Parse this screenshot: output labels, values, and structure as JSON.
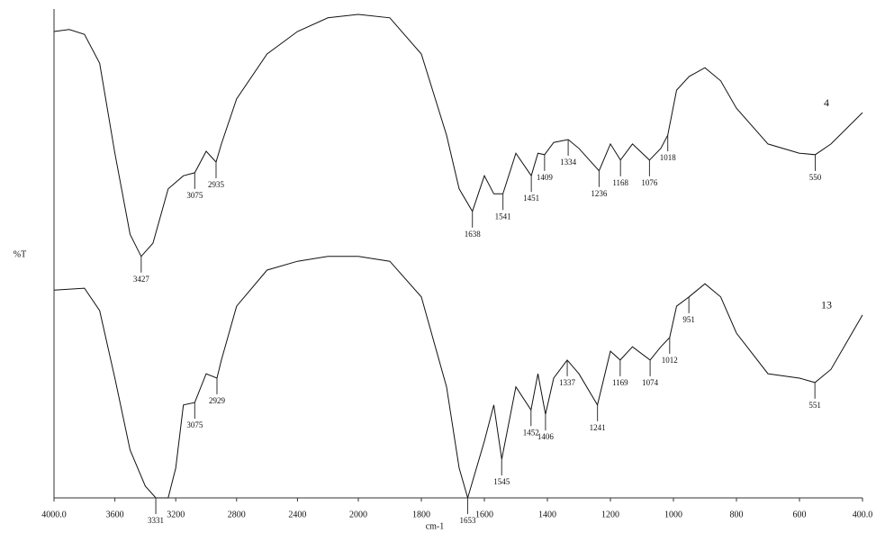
{
  "chart_data": {
    "type": "line",
    "x_label": "cm-1",
    "y_label": "%T",
    "xlim": [
      4000,
      400
    ],
    "x_scale_change": 2000,
    "ylim": [
      0,
      100
    ],
    "xticks": [
      {
        "value": 4000,
        "label": "4000.0"
      },
      3600,
      3200,
      2800,
      2400,
      2000,
      1800,
      1600,
      1400,
      1200,
      1000,
      800,
      600,
      {
        "value": 400,
        "label": "400.0"
      }
    ],
    "series": [
      {
        "name": "4",
        "color": "#111111",
        "x": [
          4000,
          3900,
          3800,
          3700,
          3600,
          3500,
          3427,
          3350,
          3250,
          3150,
          3075,
          3000,
          2935,
          2900,
          2800,
          2600,
          2400,
          2200,
          2000,
          1900,
          1800,
          1720,
          1680,
          1638,
          1600,
          1570,
          1541,
          1500,
          1451,
          1430,
          1409,
          1380,
          1334,
          1300,
          1236,
          1200,
          1168,
          1130,
          1076,
          1040,
          1018,
          990,
          950,
          900,
          850,
          800,
          700,
          600,
          550,
          500,
          400
        ],
        "values": [
          95.4,
          95.8,
          94.8,
          88.9,
          70.5,
          53.9,
          49.4,
          52.1,
          63.2,
          65.9,
          66.5,
          70.9,
          68.7,
          72.4,
          81.6,
          90.8,
          95.4,
          98.2,
          98.9,
          98.2,
          90.8,
          74.2,
          63.2,
          58.6,
          65.9,
          62.2,
          62.2,
          70.5,
          65.9,
          70.5,
          70.2,
          72.7,
          73.3,
          71.5,
          66.9,
          72.4,
          69.1,
          72.4,
          69.1,
          71.5,
          74.2,
          83.4,
          86.2,
          88.0,
          85.3,
          79.7,
          72.4,
          70.5,
          70.2,
          72.4,
          78.8
        ],
        "peaks": [
          3427,
          3075,
          2935,
          1638,
          1541,
          1451,
          1409,
          1334,
          1236,
          1168,
          1076,
          1018,
          550
        ]
      },
      {
        "name": "13",
        "color": "#111111",
        "x": [
          4000,
          3800,
          3700,
          3600,
          3500,
          3400,
          3331,
          3250,
          3200,
          3150,
          3075,
          3000,
          2929,
          2900,
          2800,
          2600,
          2400,
          2200,
          2000,
          1900,
          1800,
          1720,
          1680,
          1653,
          1600,
          1570,
          1545,
          1500,
          1452,
          1430,
          1406,
          1380,
          1337,
          1300,
          1241,
          1200,
          1169,
          1130,
          1074,
          1040,
          1012,
          990,
          951,
          900,
          850,
          800,
          700,
          600,
          551,
          500,
          400
        ],
        "values": [
          42.5,
          42.9,
          38.3,
          24.5,
          9.8,
          2.4,
          0,
          0,
          6.1,
          19.0,
          19.5,
          25.4,
          24.5,
          28.2,
          39.2,
          46.6,
          48.4,
          49.4,
          49.4,
          48.4,
          41.1,
          22.7,
          6.1,
          0,
          11.6,
          19.0,
          7.9,
          22.7,
          18.0,
          25.4,
          17.1,
          24.5,
          28.2,
          25.4,
          19.0,
          30.0,
          28.2,
          30.9,
          28.2,
          30.9,
          32.8,
          39.2,
          41.1,
          43.8,
          41.1,
          33.7,
          25.4,
          24.5,
          23.6,
          26.3,
          37.4
        ],
        "peaks": [
          3331,
          3075,
          2929,
          1653,
          1545,
          1452,
          1406,
          1337,
          1241,
          1169,
          1074,
          1012,
          951,
          551
        ]
      }
    ]
  }
}
